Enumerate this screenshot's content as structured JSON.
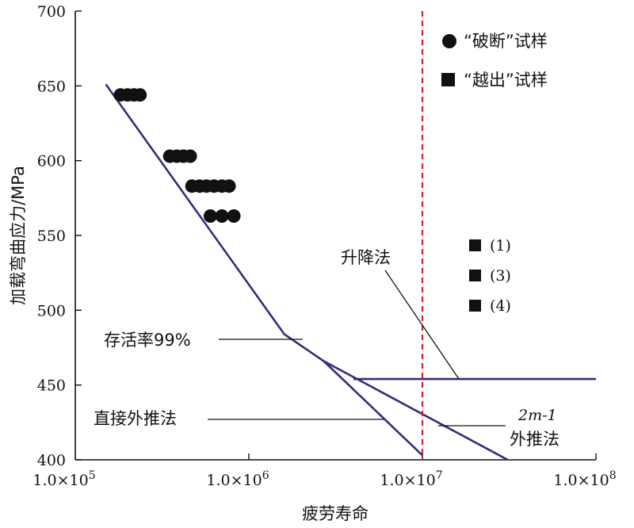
{
  "chart_data": {
    "type": "scatter",
    "xscale": "log",
    "xlim": [
      100000,
      100000000
    ],
    "ylim": [
      400,
      700
    ],
    "xlabel": "疲劳寿命",
    "ylabel": "加载弯曲应力/MPa",
    "x_ticks": [
      {
        "value": 100000,
        "mantissa": "1.0×10",
        "exp": "5"
      },
      {
        "value": 1000000,
        "mantissa": "1.0×10",
        "exp": "6"
      },
      {
        "value": 10000000,
        "mantissa": "1.0×10",
        "exp": "7"
      },
      {
        "value": 100000000,
        "mantissa": "1.0×10",
        "exp": "8"
      }
    ],
    "y_ticks": [
      400,
      450,
      500,
      550,
      600,
      650,
      700
    ],
    "legend": [
      {
        "marker": "circle",
        "label": "“破断”试样"
      },
      {
        "marker": "square",
        "label": "“越出”试样"
      }
    ],
    "fracture_points": [
      {
        "x": 182000,
        "y": 644
      },
      {
        "x": 200000,
        "y": 644
      },
      {
        "x": 218000,
        "y": 644
      },
      {
        "x": 236000,
        "y": 644
      },
      {
        "x": 350000,
        "y": 603
      },
      {
        "x": 385000,
        "y": 603
      },
      {
        "x": 420000,
        "y": 603
      },
      {
        "x": 460000,
        "y": 603
      },
      {
        "x": 470000,
        "y": 583
      },
      {
        "x": 520000,
        "y": 583
      },
      {
        "x": 570000,
        "y": 583
      },
      {
        "x": 630000,
        "y": 583
      },
      {
        "x": 700000,
        "y": 583
      },
      {
        "x": 770000,
        "y": 583
      },
      {
        "x": 600000,
        "y": 563
      },
      {
        "x": 700000,
        "y": 563
      },
      {
        "x": 820000,
        "y": 563
      }
    ],
    "runout_points": [
      {
        "y_label": 513,
        "label": "(1)"
      },
      {
        "y_label": 492,
        "label": "(3)"
      },
      {
        "y_label": 470,
        "label": "(4)"
      }
    ],
    "lines": [
      {
        "name": "存活率99%",
        "color": "#3a2a7a",
        "points": [
          [
            150000,
            651
          ],
          [
            1600000,
            484
          ],
          [
            2700000,
            466
          ],
          [
            10000000,
            403
          ]
        ]
      },
      {
        "name": "2m-1外推法",
        "color": "#3a2a7a",
        "points": [
          [
            2700000,
            466
          ],
          [
            31000000,
            400
          ]
        ]
      },
      {
        "name": "升降法",
        "color": "#3a2a7a",
        "points": [
          [
            4000000,
            454
          ],
          [
            100000000,
            454
          ]
        ]
      }
    ],
    "reference_line": {
      "x": 10000000,
      "color": "#e02020",
      "style": "dashed"
    },
    "annotations": [
      {
        "name": "survival-99",
        "lines": [
          "存活率99%"
        ]
      },
      {
        "name": "direct-extrapolation",
        "lines": [
          "直接外推法"
        ]
      },
      {
        "name": "updown-method",
        "lines": [
          "升降法"
        ]
      },
      {
        "name": "2m1-extrapolation",
        "lines": [
          "2m-1",
          "外推法"
        ]
      }
    ]
  }
}
